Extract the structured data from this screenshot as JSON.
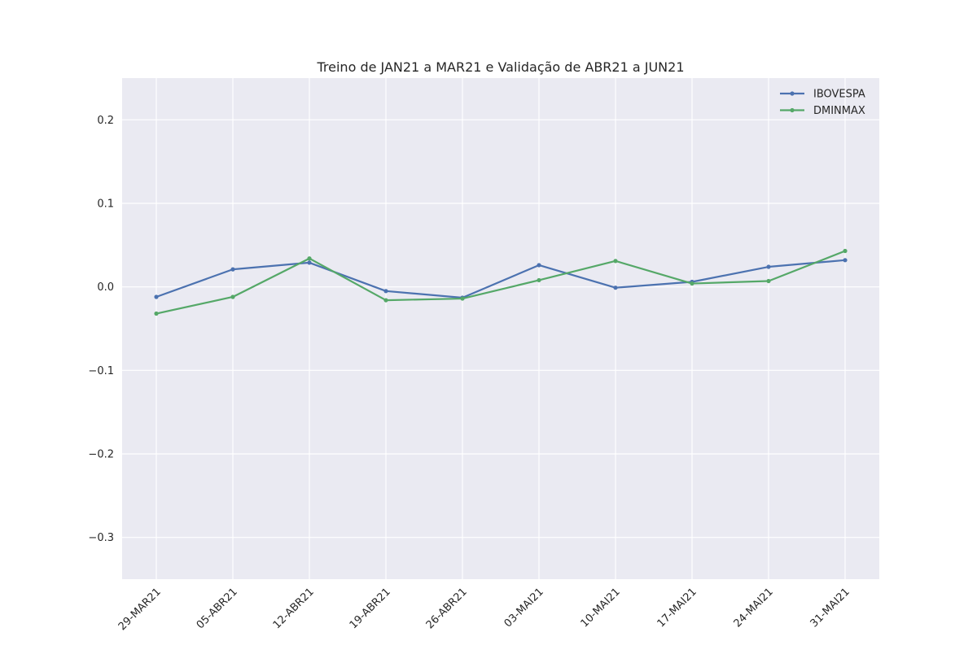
{
  "chart_data": {
    "type": "line",
    "title": "Treino de JAN21 a MAR21 e Validação de ABR21 a JUN21",
    "xlabel": "",
    "ylabel": "",
    "categories": [
      "29-MAR21",
      "05-ABR21",
      "12-ABR21",
      "19-ABR21",
      "26-ABR21",
      "03-MAI21",
      "10-MAI21",
      "17-MAI21",
      "24-MAI21",
      "31-MAI21"
    ],
    "series": [
      {
        "name": "IBOVESPA",
        "color": "#4c72b0",
        "values": [
          -0.012,
          0.021,
          0.029,
          -0.005,
          -0.013,
          0.026,
          -0.001,
          0.006,
          0.024,
          0.032
        ]
      },
      {
        "name": "DMINMAX",
        "color": "#55a868",
        "values": [
          -0.032,
          -0.012,
          0.034,
          -0.016,
          -0.014,
          0.008,
          0.031,
          0.004,
          0.007,
          0.043
        ]
      }
    ],
    "ylim": [
      -0.35,
      0.25
    ],
    "yticks": [
      0.2,
      0.1,
      0.0,
      -0.1,
      -0.2,
      -0.3
    ],
    "ytick_labels": [
      "0.2",
      "0.1",
      "0.0",
      "−0.1",
      "−0.2",
      "−0.3"
    ],
    "grid": true,
    "legend_position": "top-right",
    "background_color": "#eaeaf2",
    "grid_color": "#ffffff"
  }
}
